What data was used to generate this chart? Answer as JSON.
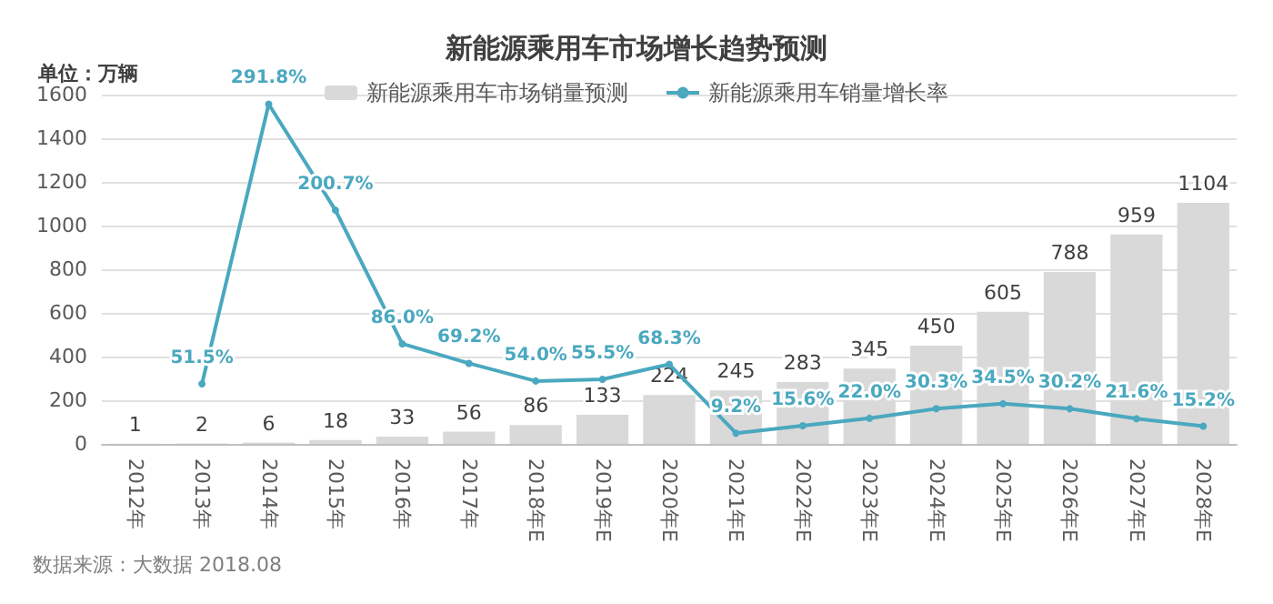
{
  "chart_data": {
    "type": "bar",
    "title": "新能源乘用车市场增长趋势预测",
    "ylabel": "单位：万辆",
    "annotations": [
      "数据来源：大数据 2018.08"
    ],
    "categories": [
      "2012年",
      "2013年",
      "2014年",
      "2015年",
      "2016年",
      "2017年",
      "2018年E",
      "2019年E",
      "2020年E",
      "2021年E",
      "2022年E",
      "2023年E",
      "2024年E",
      "2025年E",
      "2026年E",
      "2027年E",
      "2028年E"
    ],
    "series": [
      {
        "name": "新能源乘用车市场销量预测",
        "color": "#d9d9d9",
        "values": [
          1,
          2,
          6,
          18,
          33,
          56,
          86,
          133,
          224,
          245,
          283,
          345,
          450,
          605,
          788,
          959,
          1104
        ]
      },
      {
        "name": "新能源乘用车销量增长率",
        "type": "line",
        "axis": "y2",
        "color": "#4aa8bf",
        "values": [
          null,
          51.5,
          291.8,
          200.7,
          86.0,
          69.2,
          54.0,
          55.5,
          68.3,
          9.2,
          15.6,
          22.0,
          30.3,
          34.5,
          30.2,
          21.6,
          15.2
        ],
        "value_labels": [
          null,
          "51.5%",
          "291.8%",
          "200.7%",
          "86.0%",
          "69.2%",
          "54.0%",
          "55.5%",
          "68.3%",
          "9.2%",
          "15.6%",
          "22.0%",
          "30.3%",
          "34.5%",
          "30.2%",
          "21.6%",
          "15.2%"
        ]
      }
    ],
    "data_labels": true,
    "ylim": [
      0,
      1600
    ],
    "yticks": [
      0,
      200,
      400,
      600,
      800,
      1000,
      1200,
      1400,
      1600
    ],
    "y2lim": [
      0,
      300
    ],
    "grid": "y",
    "legend": "top",
    "marker": "circle"
  }
}
